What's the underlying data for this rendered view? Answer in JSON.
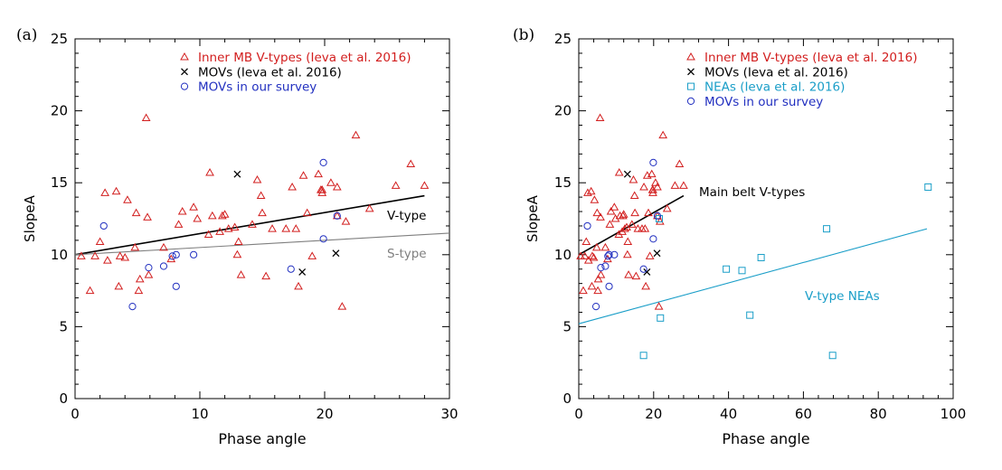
{
  "chart_data": [
    {
      "type": "scatter",
      "panel_label": "(a)",
      "xlabel": "Phase angle",
      "ylabel": "SlopeA",
      "xlim": [
        0,
        30
      ],
      "ylim": [
        0,
        25
      ],
      "x_ticks": [
        "0",
        "10",
        "20",
        "30"
      ],
      "y_ticks": [
        "0",
        "5",
        "10",
        "15",
        "20",
        "25"
      ],
      "legend": [
        "Inner MB V-types (Ieva et al. 2016)",
        "MOVs (Ieva et al. 2016)",
        "MOVs in our survey"
      ],
      "series": [
        {
          "name": "Inner MB V-types (Ieva et al. 2016)",
          "marker": "triangle",
          "color": "#d21e1e",
          "points": [
            [
              0.5,
              9.9
            ],
            [
              1.2,
              7.5
            ],
            [
              1.6,
              9.9
            ],
            [
              2.0,
              10.9
            ],
            [
              2.4,
              14.3
            ],
            [
              2.6,
              9.6
            ],
            [
              3.3,
              14.4
            ],
            [
              3.5,
              7.8
            ],
            [
              3.6,
              9.9
            ],
            [
              4.0,
              9.8
            ],
            [
              4.2,
              13.8
            ],
            [
              4.8,
              10.5
            ],
            [
              4.9,
              12.9
            ],
            [
              5.1,
              7.5
            ],
            [
              5.2,
              8.3
            ],
            [
              5.7,
              19.5
            ],
            [
              5.8,
              12.6
            ],
            [
              5.9,
              8.6
            ],
            [
              7.1,
              10.5
            ],
            [
              7.7,
              9.7
            ],
            [
              8.3,
              12.1
            ],
            [
              8.6,
              13.0
            ],
            [
              9.5,
              13.3
            ],
            [
              9.8,
              12.5
            ],
            [
              10.7,
              11.4
            ],
            [
              10.8,
              15.7
            ],
            [
              11.0,
              12.7
            ],
            [
              11.6,
              11.6
            ],
            [
              11.8,
              12.7
            ],
            [
              12.0,
              12.8
            ],
            [
              12.3,
              11.8
            ],
            [
              12.8,
              11.9
            ],
            [
              13.0,
              10.0
            ],
            [
              13.1,
              10.9
            ],
            [
              13.3,
              8.6
            ],
            [
              14.2,
              12.1
            ],
            [
              14.6,
              15.2
            ],
            [
              14.9,
              14.1
            ],
            [
              15.0,
              12.9
            ],
            [
              15.3,
              8.5
            ],
            [
              15.8,
              11.8
            ],
            [
              16.9,
              11.8
            ],
            [
              17.4,
              14.7
            ],
            [
              17.7,
              11.8
            ],
            [
              17.9,
              7.8
            ],
            [
              18.3,
              15.5
            ],
            [
              18.6,
              12.9
            ],
            [
              19.0,
              9.9
            ],
            [
              19.5,
              15.6
            ],
            [
              19.7,
              14.5
            ],
            [
              19.8,
              14.5
            ],
            [
              19.8,
              14.3
            ],
            [
              20.5,
              15.0
            ],
            [
              21.0,
              12.7
            ],
            [
              21.0,
              14.7
            ],
            [
              21.4,
              6.4
            ],
            [
              21.7,
              12.3
            ],
            [
              22.5,
              18.3
            ],
            [
              23.6,
              13.2
            ],
            [
              25.7,
              14.8
            ],
            [
              26.9,
              16.3
            ],
            [
              28.0,
              14.8
            ]
          ]
        },
        {
          "name": "MOVs (Ieva et al. 2016)",
          "marker": "x",
          "color": "#000000",
          "points": [
            [
              13.0,
              15.6
            ],
            [
              18.2,
              8.8
            ],
            [
              20.9,
              10.1
            ]
          ]
        },
        {
          "name": "MOVs in our survey",
          "marker": "circle",
          "color": "#2230c0",
          "points": [
            [
              2.3,
              12.0
            ],
            [
              4.6,
              6.4
            ],
            [
              5.9,
              9.1
            ],
            [
              7.1,
              9.2
            ],
            [
              7.8,
              9.9
            ],
            [
              8.1,
              7.8
            ],
            [
              8.1,
              10.0
            ],
            [
              9.5,
              10.0
            ],
            [
              17.3,
              9.0
            ],
            [
              19.9,
              16.4
            ],
            [
              19.9,
              11.1
            ],
            [
              21.0,
              12.7
            ]
          ]
        }
      ],
      "fit_lines": [
        {
          "label": "V-type",
          "x": [
            0,
            28
          ],
          "y": [
            10.0,
            14.1
          ],
          "color": "#000000"
        },
        {
          "label": "S-type",
          "x": [
            0,
            30
          ],
          "y": [
            10.0,
            11.5
          ],
          "color": "#7f7f7f"
        }
      ]
    },
    {
      "type": "scatter",
      "panel_label": "(b)",
      "xlabel": "Phase angle",
      "ylabel": "SlopeA",
      "xlim": [
        0,
        100
      ],
      "ylim": [
        0,
        25
      ],
      "x_ticks": [
        "0",
        "20",
        "40",
        "60",
        "80",
        "100"
      ],
      "y_ticks": [
        "0",
        "5",
        "10",
        "15",
        "20",
        "25"
      ],
      "legend": [
        "Inner MB V-types (Ieva et al. 2016)",
        "MOVs (Ieva et al. 2016)",
        "NEAs (Ieva et al. 2016)",
        "MOVs in our survey"
      ],
      "series": [
        {
          "name": "Inner MB V-types (Ieva et al. 2016)",
          "marker": "triangle",
          "color": "#d21e1e",
          "points": [
            [
              0.5,
              9.9
            ],
            [
              1.2,
              7.5
            ],
            [
              1.6,
              9.9
            ],
            [
              2.0,
              10.9
            ],
            [
              2.4,
              14.3
            ],
            [
              2.6,
              9.6
            ],
            [
              3.3,
              14.4
            ],
            [
              3.5,
              7.8
            ],
            [
              3.6,
              9.9
            ],
            [
              4.0,
              9.8
            ],
            [
              4.2,
              13.8
            ],
            [
              4.8,
              10.5
            ],
            [
              4.9,
              12.9
            ],
            [
              5.1,
              7.5
            ],
            [
              5.2,
              8.3
            ],
            [
              5.7,
              19.5
            ],
            [
              5.8,
              12.6
            ],
            [
              5.9,
              8.6
            ],
            [
              7.1,
              10.5
            ],
            [
              7.7,
              9.7
            ],
            [
              8.3,
              12.1
            ],
            [
              8.6,
              13.0
            ],
            [
              9.5,
              13.3
            ],
            [
              9.8,
              12.5
            ],
            [
              10.7,
              11.4
            ],
            [
              10.8,
              15.7
            ],
            [
              11.0,
              12.7
            ],
            [
              11.6,
              11.6
            ],
            [
              11.8,
              12.7
            ],
            [
              12.0,
              12.8
            ],
            [
              12.3,
              11.8
            ],
            [
              12.8,
              11.9
            ],
            [
              13.0,
              10.0
            ],
            [
              13.1,
              10.9
            ],
            [
              13.3,
              8.6
            ],
            [
              14.2,
              12.1
            ],
            [
              14.6,
              15.2
            ],
            [
              14.9,
              14.1
            ],
            [
              15.0,
              12.9
            ],
            [
              15.3,
              8.5
            ],
            [
              15.8,
              11.8
            ],
            [
              16.9,
              11.8
            ],
            [
              17.4,
              14.7
            ],
            [
              17.7,
              11.8
            ],
            [
              17.9,
              7.8
            ],
            [
              18.3,
              15.5
            ],
            [
              18.6,
              12.9
            ],
            [
              19.0,
              9.9
            ],
            [
              19.5,
              15.6
            ],
            [
              19.7,
              14.5
            ],
            [
              19.8,
              14.5
            ],
            [
              19.8,
              14.3
            ],
            [
              20.5,
              15.0
            ],
            [
              21.0,
              12.7
            ],
            [
              21.0,
              14.7
            ],
            [
              21.4,
              6.4
            ],
            [
              21.7,
              12.3
            ],
            [
              22.5,
              18.3
            ],
            [
              23.6,
              13.2
            ],
            [
              25.7,
              14.8
            ],
            [
              26.9,
              16.3
            ],
            [
              28.0,
              14.8
            ]
          ]
        },
        {
          "name": "MOVs (Ieva et al. 2016)",
          "marker": "x",
          "color": "#000000",
          "points": [
            [
              13.0,
              15.6
            ],
            [
              18.2,
              8.8
            ],
            [
              20.9,
              10.1
            ]
          ]
        },
        {
          "name": "NEAs (Ieva et al. 2016)",
          "marker": "square",
          "color": "#1a9ec8",
          "points": [
            [
              17.3,
              3.0
            ],
            [
              21.5,
              12.5
            ],
            [
              21.8,
              5.6
            ],
            [
              39.4,
              9.0
            ],
            [
              43.6,
              8.9
            ],
            [
              45.7,
              5.8
            ],
            [
              48.7,
              9.8
            ],
            [
              66.2,
              11.8
            ],
            [
              67.8,
              3.0
            ],
            [
              93.3,
              14.7
            ]
          ]
        },
        {
          "name": "MOVs in our survey",
          "marker": "circle",
          "color": "#2230c0",
          "points": [
            [
              2.3,
              12.0
            ],
            [
              4.6,
              6.4
            ],
            [
              5.9,
              9.1
            ],
            [
              7.1,
              9.2
            ],
            [
              7.8,
              9.9
            ],
            [
              8.1,
              7.8
            ],
            [
              8.1,
              10.0
            ],
            [
              9.5,
              10.0
            ],
            [
              17.3,
              9.0
            ],
            [
              19.9,
              16.4
            ],
            [
              19.9,
              11.1
            ],
            [
              21.0,
              12.7
            ]
          ]
        }
      ],
      "fit_lines": [
        {
          "label": "Main belt V-types",
          "x": [
            0,
            28
          ],
          "y": [
            10.0,
            14.1
          ],
          "color": "#000000"
        },
        {
          "label": "V-type NEAs",
          "x": [
            0,
            93
          ],
          "y": [
            5.2,
            11.8
          ],
          "color": "#1a9ec8"
        }
      ]
    }
  ]
}
